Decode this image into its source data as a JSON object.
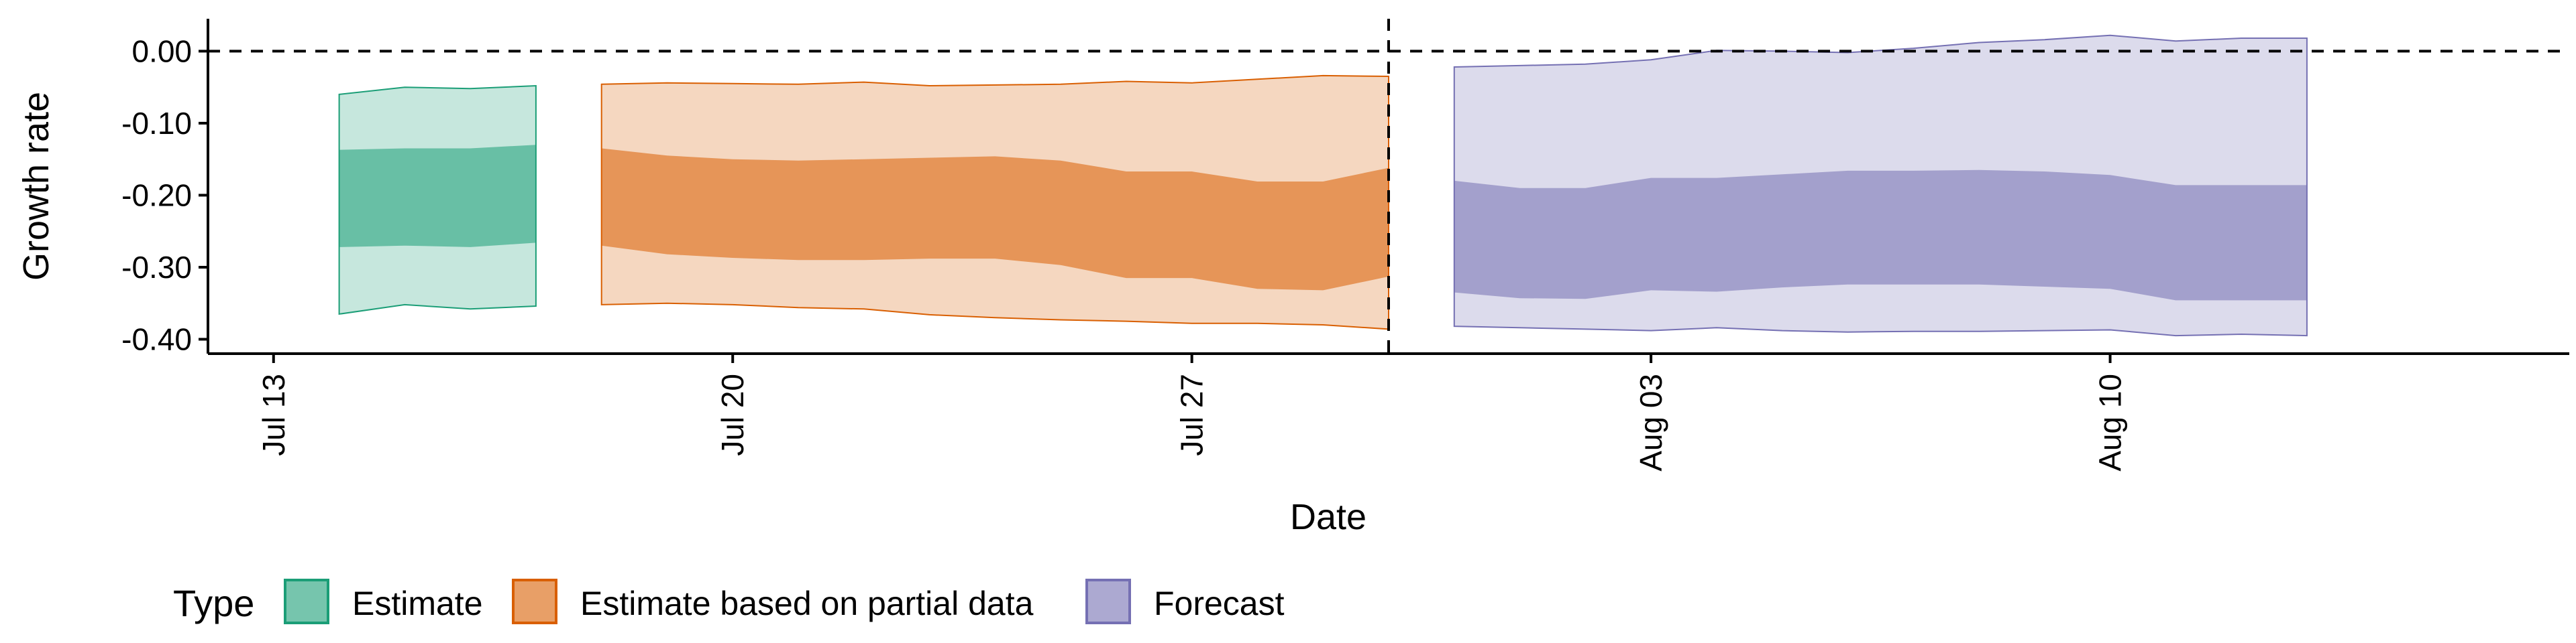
{
  "chart_data": {
    "type": "area",
    "title": "",
    "xlabel": "Date",
    "ylabel": "Growth rate",
    "x_range": [
      "2020-07-12",
      "2020-08-17"
    ],
    "ylim": [
      -0.42,
      0.045
    ],
    "y_ticks": [
      0.0,
      -0.1,
      -0.2,
      -0.3,
      -0.4
    ],
    "y_tick_labels": [
      "0.00",
      "-0.10",
      "-0.20",
      "-0.30",
      "-0.40"
    ],
    "x_ticks": [
      "2020-07-13",
      "2020-07-20",
      "2020-07-27",
      "2020-08-03",
      "2020-08-10"
    ],
    "x_tick_labels": [
      "Jul 13",
      "Jul 20",
      "Jul 27",
      "Aug 03",
      "Aug 10"
    ],
    "reference_lines": {
      "horizontal_y": 0.0,
      "vertical_date": "2020-07-30"
    },
    "legend": {
      "title": "Type",
      "position": "bottom"
    },
    "series": [
      {
        "name": "Estimate",
        "color": "#1b9e77",
        "x": [
          "2020-07-14",
          "2020-07-15",
          "2020-07-16",
          "2020-07-17"
        ],
        "outer_lower": [
          -0.365,
          -0.352,
          -0.358,
          -0.354
        ],
        "outer_upper": [
          -0.06,
          -0.05,
          -0.052,
          -0.048
        ],
        "inner_lower": [
          -0.272,
          -0.27,
          -0.272,
          -0.266
        ],
        "inner_upper": [
          -0.137,
          -0.135,
          -0.135,
          -0.13
        ]
      },
      {
        "name": "Estimate based on partial data",
        "color": "#d95f02",
        "x": [
          "2020-07-18",
          "2020-07-19",
          "2020-07-20",
          "2020-07-21",
          "2020-07-22",
          "2020-07-23",
          "2020-07-24",
          "2020-07-25",
          "2020-07-26",
          "2020-07-27",
          "2020-07-28",
          "2020-07-29",
          "2020-07-30"
        ],
        "outer_lower": [
          -0.352,
          -0.35,
          -0.352,
          -0.356,
          -0.358,
          -0.366,
          -0.37,
          -0.373,
          -0.375,
          -0.378,
          -0.378,
          -0.38,
          -0.386
        ],
        "outer_upper": [
          -0.046,
          -0.044,
          -0.045,
          -0.046,
          -0.043,
          -0.048,
          -0.047,
          -0.046,
          -0.042,
          -0.044,
          -0.039,
          -0.034,
          -0.035
        ],
        "inner_lower": [
          -0.27,
          -0.282,
          -0.287,
          -0.29,
          -0.29,
          -0.288,
          -0.288,
          -0.297,
          -0.315,
          -0.315,
          -0.33,
          -0.332,
          -0.313
        ],
        "inner_upper": [
          -0.135,
          -0.145,
          -0.15,
          -0.152,
          -0.15,
          -0.148,
          -0.146,
          -0.152,
          -0.167,
          -0.167,
          -0.181,
          -0.181,
          -0.162
        ]
      },
      {
        "name": "Forecast",
        "color": "#7570b3",
        "x": [
          "2020-07-31",
          "2020-08-01",
          "2020-08-02",
          "2020-08-03",
          "2020-08-04",
          "2020-08-05",
          "2020-08-06",
          "2020-08-07",
          "2020-08-08",
          "2020-08-09",
          "2020-08-10",
          "2020-08-11",
          "2020-08-12",
          "2020-08-13"
        ],
        "outer_lower": [
          -0.382,
          -0.384,
          -0.386,
          -0.388,
          -0.384,
          -0.388,
          -0.39,
          -0.389,
          -0.389,
          -0.388,
          -0.387,
          -0.395,
          -0.393,
          -0.395
        ],
        "outer_upper": [
          -0.022,
          -0.02,
          -0.018,
          -0.012,
          0.001,
          0.0,
          -0.002,
          0.004,
          0.012,
          0.016,
          0.022,
          0.014,
          0.018,
          0.018
        ],
        "inner_lower": [
          -0.335,
          -0.343,
          -0.344,
          -0.332,
          -0.334,
          -0.328,
          -0.324,
          -0.324,
          -0.324,
          -0.327,
          -0.33,
          -0.346,
          -0.346,
          -0.346
        ],
        "inner_upper": [
          -0.18,
          -0.19,
          -0.19,
          -0.176,
          -0.176,
          -0.171,
          -0.166,
          -0.166,
          -0.165,
          -0.167,
          -0.172,
          -0.186,
          -0.186,
          -0.186
        ]
      }
    ]
  }
}
